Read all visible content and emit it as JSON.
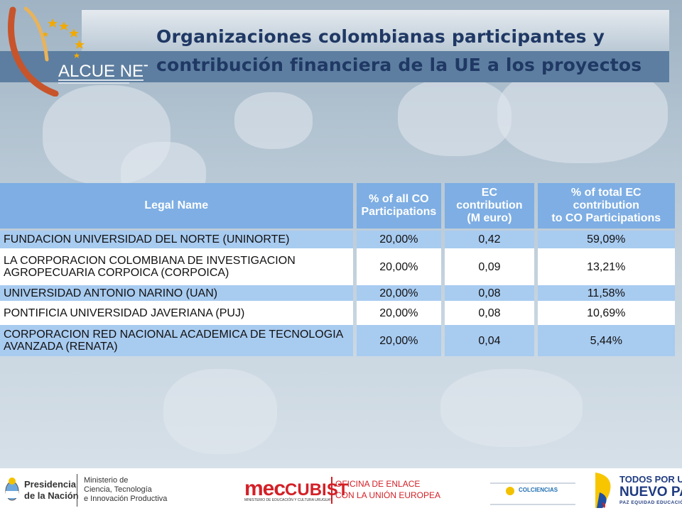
{
  "header": {
    "logo_text": "ALCUE NET",
    "title_line1": "Organizaciones colombianas participantes y",
    "title_line2": "contribución financiera de la UE a los proyectos"
  },
  "table": {
    "columns": [
      "Legal Name",
      "% of all CO Participations",
      "EC contribution (M euro)",
      "% of total EC contribution to CO Participations"
    ],
    "column_lines": [
      [
        "Legal Name"
      ],
      [
        "% of all CO",
        "Participations"
      ],
      [
        "EC",
        "contribution",
        "(M euro)"
      ],
      [
        "% of total EC",
        "contribution",
        "to CO Participations"
      ]
    ],
    "rows": [
      {
        "name_lines": [
          "FUNDACION UNIVERSIDAD DEL NORTE (UNINORTE)"
        ],
        "pct_participations": "20,00%",
        "ec_contribution": "0,42",
        "pct_ec": "59,09%"
      },
      {
        "name_lines": [
          "LA CORPORACION COLOMBIANA DE INVESTIGACION",
          "AGROPECUARIA CORPOICA (CORPOICA)"
        ],
        "pct_participations": "20,00%",
        "ec_contribution": "0,09",
        "pct_ec": "13,21%"
      },
      {
        "name_lines": [
          "UNIVERSIDAD ANTONIO NARINO (UAN)"
        ],
        "pct_participations": "20,00%",
        "ec_contribution": "0,08",
        "pct_ec": "11,58%"
      },
      {
        "name_lines": [
          "PONTIFICIA UNIVERSIDAD JAVERIANA (PUJ)"
        ],
        "pct_participations": "20,00%",
        "ec_contribution": "0,08",
        "pct_ec": "10,69%"
      },
      {
        "name_lines": [
          "CORPORACION RED NACIONAL ACADEMICA DE TECNOLOGIA",
          "AVANZADA (RENATA)"
        ],
        "pct_participations": "20,00%",
        "ec_contribution": "0,04",
        "pct_ec": "5,44%"
      }
    ]
  },
  "footer": {
    "presidencia_line1": "Presidencia",
    "presidencia_line2": "de la Nación",
    "ministerio_line1": "Ministerio de",
    "ministerio_line2": "Ciencia, Tecnología",
    "ministerio_line3": "e Innovación Productiva",
    "mec": "mec",
    "cubist": "CUBIST",
    "mec_sub": "MINISTERIO DE EDUCACIÓN Y CULTURA URUGUAY",
    "oficina_line1": "OFICINA DE ENLACE",
    "oficina_line2": "CON LA UNIÓN EUROPEA",
    "colciencias": "COLCIENCIAS",
    "todos_line1": "TODOS POR UN",
    "todos_line2": "NUEVO PAÍS",
    "todos_line3": "PAZ  EQUIDAD  EDUCACIÓN"
  },
  "colors": {
    "title": "#1f3864",
    "header_band": "#5d7ea0",
    "table_header": "#7eaee3",
    "row_blue": "#a8cbf0",
    "star_gold": "#f2a900",
    "mec_red": "#d32027"
  }
}
